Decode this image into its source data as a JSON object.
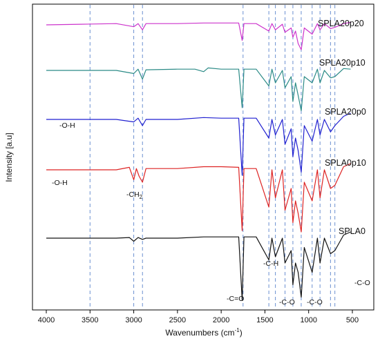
{
  "chart_data": {
    "type": "line",
    "xlabel": "Wavenumbers (cm",
    "xlabel_sup": "-1",
    "xlabel_end": ")",
    "ylabel": "Intensity [a.u]",
    "xlim": [
      4000,
      500
    ],
    "x_reversed": true,
    "x_ticks": [
      4000,
      3500,
      3000,
      2500,
      2000,
      1500,
      1000,
      500
    ],
    "reference_lines": [
      3500,
      3000,
      2900,
      1750,
      1455,
      1380,
      1270,
      1180,
      1085,
      960,
      870,
      750,
      700
    ],
    "series": [
      {
        "name": "SPLA20p20",
        "color": "#cc33cc",
        "offset": 4,
        "points": [
          [
            4000,
            0
          ],
          [
            3600,
            0.01
          ],
          [
            3200,
            0.02
          ],
          [
            3000,
            -0.03
          ],
          [
            2950,
            0.02
          ],
          [
            2900,
            -0.08
          ],
          [
            2860,
            0.02
          ],
          [
            2500,
            0.02
          ],
          [
            2200,
            0.03
          ],
          [
            2000,
            0.03
          ],
          [
            1800,
            0.03
          ],
          [
            1760,
            -0.25
          ],
          [
            1740,
            0.02
          ],
          [
            1600,
            0.02
          ],
          [
            1455,
            -0.1
          ],
          [
            1420,
            0.02
          ],
          [
            1380,
            -0.08
          ],
          [
            1300,
            0.01
          ],
          [
            1270,
            -0.12
          ],
          [
            1200,
            -0.05
          ],
          [
            1180,
            -0.2
          ],
          [
            1150,
            -0.1
          ],
          [
            1120,
            -0.3
          ],
          [
            1085,
            -0.4
          ],
          [
            1050,
            -0.05
          ],
          [
            960,
            -0.15
          ],
          [
            900,
            0.02
          ],
          [
            870,
            -0.08
          ],
          [
            820,
            0.02
          ],
          [
            750,
            -0.06
          ],
          [
            700,
            -0.04
          ],
          [
            600,
            0.02
          ],
          [
            520,
            0.04
          ]
        ]
      },
      {
        "name": "SPLA20p10",
        "color": "#2a8a86",
        "offset": 3,
        "points": [
          [
            4000,
            0
          ],
          [
            3600,
            0
          ],
          [
            3200,
            0
          ],
          [
            3000,
            -0.05
          ],
          [
            2950,
            0.02
          ],
          [
            2900,
            -0.14
          ],
          [
            2860,
            0.01
          ],
          [
            2500,
            0.02
          ],
          [
            2300,
            0.02
          ],
          [
            2200,
            -0.02
          ],
          [
            2150,
            0.04
          ],
          [
            2000,
            0.02
          ],
          [
            1800,
            0.02
          ],
          [
            1760,
            -0.6
          ],
          [
            1740,
            0.02
          ],
          [
            1600,
            0.02
          ],
          [
            1455,
            -0.25
          ],
          [
            1420,
            0.02
          ],
          [
            1380,
            -0.2
          ],
          [
            1300,
            0
          ],
          [
            1270,
            -0.28
          ],
          [
            1200,
            -0.1
          ],
          [
            1180,
            -0.5
          ],
          [
            1150,
            -0.2
          ],
          [
            1120,
            -0.4
          ],
          [
            1085,
            -0.65
          ],
          [
            1050,
            -0.1
          ],
          [
            960,
            -0.2
          ],
          [
            900,
            0.02
          ],
          [
            870,
            -0.2
          ],
          [
            820,
            0
          ],
          [
            750,
            -0.12
          ],
          [
            700,
            -0.1
          ],
          [
            600,
            0.03
          ],
          [
            520,
            0.02
          ]
        ]
      },
      {
        "name": "SPLA20p0",
        "color": "#1f1fd0",
        "offset": 2,
        "points": [
          [
            4000,
            0
          ],
          [
            3600,
            0
          ],
          [
            3200,
            0
          ],
          [
            3000,
            -0.04
          ],
          [
            2950,
            0.02
          ],
          [
            2900,
            -0.1
          ],
          [
            2860,
            0
          ],
          [
            2500,
            0
          ],
          [
            2200,
            0.03
          ],
          [
            2000,
            0.02
          ],
          [
            1800,
            0.02
          ],
          [
            1760,
            -0.9
          ],
          [
            1740,
            0.02
          ],
          [
            1600,
            0.02
          ],
          [
            1455,
            -0.3
          ],
          [
            1420,
            0
          ],
          [
            1380,
            -0.25
          ],
          [
            1300,
            0
          ],
          [
            1270,
            -0.4
          ],
          [
            1200,
            -0.15
          ],
          [
            1180,
            -0.6
          ],
          [
            1150,
            -0.3
          ],
          [
            1120,
            -0.5
          ],
          [
            1085,
            -0.85
          ],
          [
            1050,
            -0.1
          ],
          [
            960,
            -0.35
          ],
          [
            900,
            0
          ],
          [
            870,
            -0.25
          ],
          [
            820,
            0
          ],
          [
            750,
            -0.2
          ],
          [
            700,
            -0.1
          ],
          [
            600,
            0.05
          ],
          [
            520,
            0.1
          ]
        ]
      },
      {
        "name": "SPLA0p10",
        "color": "#dd2222",
        "offset": 1,
        "points": [
          [
            4000,
            0
          ],
          [
            3600,
            0
          ],
          [
            3200,
            0
          ],
          [
            3050,
            0.04
          ],
          [
            3000,
            -0.16
          ],
          [
            2970,
            0.02
          ],
          [
            2940,
            -0.1
          ],
          [
            2900,
            -0.2
          ],
          [
            2860,
            0.02
          ],
          [
            2500,
            0.02
          ],
          [
            2200,
            0.05
          ],
          [
            2000,
            0.05
          ],
          [
            1800,
            0.04
          ],
          [
            1760,
            -0.98
          ],
          [
            1740,
            0.02
          ],
          [
            1600,
            0.02
          ],
          [
            1455,
            -0.6
          ],
          [
            1420,
            0
          ],
          [
            1380,
            -0.45
          ],
          [
            1300,
            0
          ],
          [
            1270,
            -0.65
          ],
          [
            1200,
            -0.3
          ],
          [
            1180,
            -0.85
          ],
          [
            1150,
            -0.5
          ],
          [
            1120,
            -0.7
          ],
          [
            1085,
            -1.0
          ],
          [
            1050,
            -0.2
          ],
          [
            960,
            -0.5
          ],
          [
            900,
            0
          ],
          [
            870,
            -0.45
          ],
          [
            820,
            0
          ],
          [
            750,
            -0.3
          ],
          [
            700,
            -0.25
          ],
          [
            600,
            0.05
          ],
          [
            520,
            0.1
          ]
        ]
      },
      {
        "name": "SPLA0",
        "color": "#111111",
        "offset": 0,
        "points": [
          [
            4000,
            0
          ],
          [
            3600,
            0
          ],
          [
            3200,
            0
          ],
          [
            3050,
            0.01
          ],
          [
            3000,
            -0.05
          ],
          [
            2950,
            0.01
          ],
          [
            2900,
            -0.02
          ],
          [
            2860,
            0
          ],
          [
            2500,
            0
          ],
          [
            2200,
            0.02
          ],
          [
            2000,
            0.02
          ],
          [
            1800,
            0.02
          ],
          [
            1760,
            -1.0
          ],
          [
            1740,
            0.02
          ],
          [
            1600,
            0.02
          ],
          [
            1455,
            -0.35
          ],
          [
            1420,
            0
          ],
          [
            1380,
            -0.3
          ],
          [
            1300,
            0
          ],
          [
            1270,
            -0.4
          ],
          [
            1200,
            -0.2
          ],
          [
            1180,
            -0.75
          ],
          [
            1150,
            -0.4
          ],
          [
            1120,
            -0.55
          ],
          [
            1085,
            -0.95
          ],
          [
            1050,
            -0.15
          ],
          [
            960,
            -0.55
          ],
          [
            900,
            0
          ],
          [
            870,
            -0.4
          ],
          [
            820,
            0
          ],
          [
            750,
            -0.25
          ],
          [
            700,
            -0.2
          ],
          [
            600,
            0.05
          ],
          [
            520,
            0.1
          ]
        ]
      }
    ],
    "annotations": [
      {
        "text": "-O-H",
        "x": 3500,
        "series": "SPLA20p0"
      },
      {
        "text": "-O-H",
        "x": 3500,
        "series": "SPLA0p10"
      },
      {
        "text": "-CH",
        "sub": "2",
        "x": 2950,
        "series": "SPLA0p10"
      },
      {
        "text": "-C=O",
        "x": 1755,
        "series": "SPLA0"
      },
      {
        "text": "-C-H",
        "x": 1380,
        "series": "SPLA0"
      },
      {
        "text": "-C-O",
        "x": 1185,
        "series": "SPLA0"
      },
      {
        "text": "-C-O",
        "x": 1035,
        "series": "SPLA0"
      },
      {
        "text": "-C-O",
        "x": 730,
        "series": "SPLA0"
      }
    ]
  }
}
